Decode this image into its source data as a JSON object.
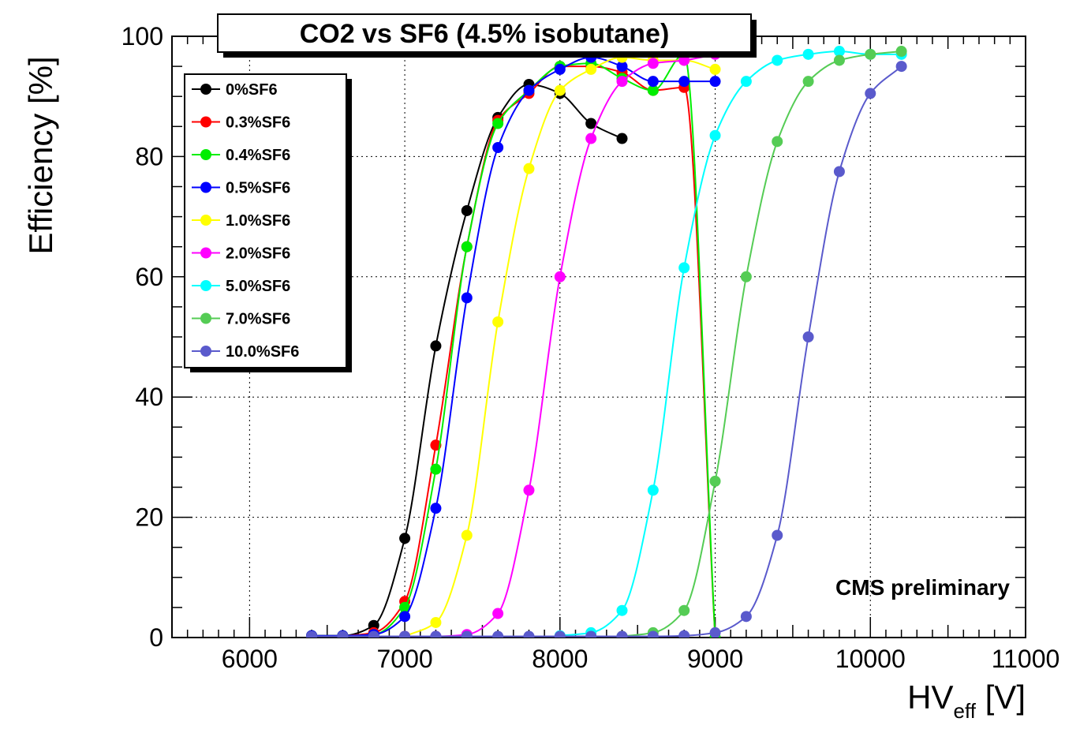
{
  "chart_data": {
    "type": "line",
    "title": "CO2 vs SF6 (4.5% isobutane)",
    "ylabel": "Efficiency [%]",
    "xlabel_main": "HV",
    "xlabel_sub": "eff",
    "xlabel_unit": " [V]",
    "annotation": "CMS preliminary",
    "xlim": [
      5500,
      11000
    ],
    "ylim": [
      0,
      100
    ],
    "xticks": [
      6000,
      7000,
      8000,
      9000,
      10000,
      11000
    ],
    "yticks": [
      0,
      20,
      40,
      60,
      80,
      100
    ],
    "grid": true,
    "legend_position": "top-left",
    "series": [
      {
        "name": "0%SF6",
        "color": "#000000",
        "x": [
          6400,
          6600,
          6800,
          7000,
          7200,
          7400,
          7600,
          7800,
          8000,
          8200,
          8400
        ],
        "y": [
          0.3,
          0.3,
          2,
          16.5,
          48.5,
          71,
          86.5,
          92,
          90.5,
          85.5,
          83
        ]
      },
      {
        "name": "0.3%SF6",
        "color": "#ff0000",
        "x": [
          6400,
          6600,
          6800,
          7000,
          7200,
          7400,
          7600,
          7800,
          8000,
          8200,
          8400,
          8600,
          8800,
          9000
        ],
        "y": [
          0.3,
          0.3,
          0.8,
          6,
          32,
          65,
          86,
          90.5,
          95,
          95,
          94,
          91,
          91.5,
          0
        ]
      },
      {
        "name": "0.4%SF6",
        "color": "#00ee00",
        "x": [
          6400,
          6600,
          6800,
          7000,
          7200,
          7400,
          7600,
          7800,
          8000,
          8200,
          8400,
          8600,
          8800,
          9000
        ],
        "y": [
          0.3,
          0.3,
          0.5,
          5,
          28,
          65,
          85.5,
          91,
          95,
          95.5,
          93,
          91,
          97,
          0
        ]
      },
      {
        "name": "0.5%SF6",
        "color": "#0000ff",
        "x": [
          6400,
          6600,
          6800,
          7000,
          7200,
          7400,
          7600,
          7800,
          8000,
          8200,
          8400,
          8600,
          8800,
          9000
        ],
        "y": [
          0.3,
          0.3,
          0.5,
          3.5,
          21.5,
          56.5,
          81.5,
          91,
          94.5,
          96.5,
          95,
          92.5,
          92.5,
          92.5
        ]
      },
      {
        "name": "1.0%SF6",
        "color": "#ffff00",
        "x": [
          7000,
          7200,
          7400,
          7600,
          7800,
          8000,
          8200,
          8400,
          8600,
          8800,
          9000
        ],
        "y": [
          0.2,
          2.5,
          17,
          52.5,
          78,
          91,
          94.5,
          96.5,
          96,
          96,
          94.5
        ]
      },
      {
        "name": "2.0%SF6",
        "color": "#ff00ff",
        "x": [
          7000,
          7200,
          7400,
          7600,
          7800,
          8000,
          8200,
          8400,
          8600,
          8800,
          9000
        ],
        "y": [
          0.2,
          0.2,
          0.5,
          4,
          24.5,
          60,
          83,
          92.5,
          95.5,
          96,
          97
        ]
      },
      {
        "name": "5.0%SF6",
        "color": "#00ffff",
        "x": [
          8000,
          8200,
          8400,
          8600,
          8800,
          9000,
          9200,
          9400,
          9600,
          9800,
          10000,
          10200
        ],
        "y": [
          0.3,
          0.8,
          4.5,
          24.5,
          61.5,
          83.5,
          92.5,
          96,
          97,
          97.5,
          97,
          97
        ]
      },
      {
        "name": "7.0%SF6",
        "color": "#55cc55",
        "x": [
          8400,
          8600,
          8800,
          9000,
          9200,
          9400,
          9600,
          9800,
          10000,
          10200
        ],
        "y": [
          0.2,
          0.8,
          4.5,
          26,
          60,
          82.5,
          92.5,
          96,
          97,
          97.5
        ]
      },
      {
        "name": "10.0%SF6",
        "color": "#5a5acc",
        "x": [
          6400,
          6600,
          6800,
          7000,
          7200,
          7400,
          7600,
          7800,
          8000,
          8200,
          8400,
          8600,
          8800,
          9000,
          9200,
          9400,
          9600,
          9800,
          10000,
          10200
        ],
        "y": [
          0.2,
          0.2,
          0.2,
          0.2,
          0.2,
          0.2,
          0.2,
          0.2,
          0.2,
          0.2,
          0.2,
          0.2,
          0.3,
          0.8,
          3.5,
          17,
          50,
          77.5,
          90.5,
          95
        ]
      }
    ]
  }
}
